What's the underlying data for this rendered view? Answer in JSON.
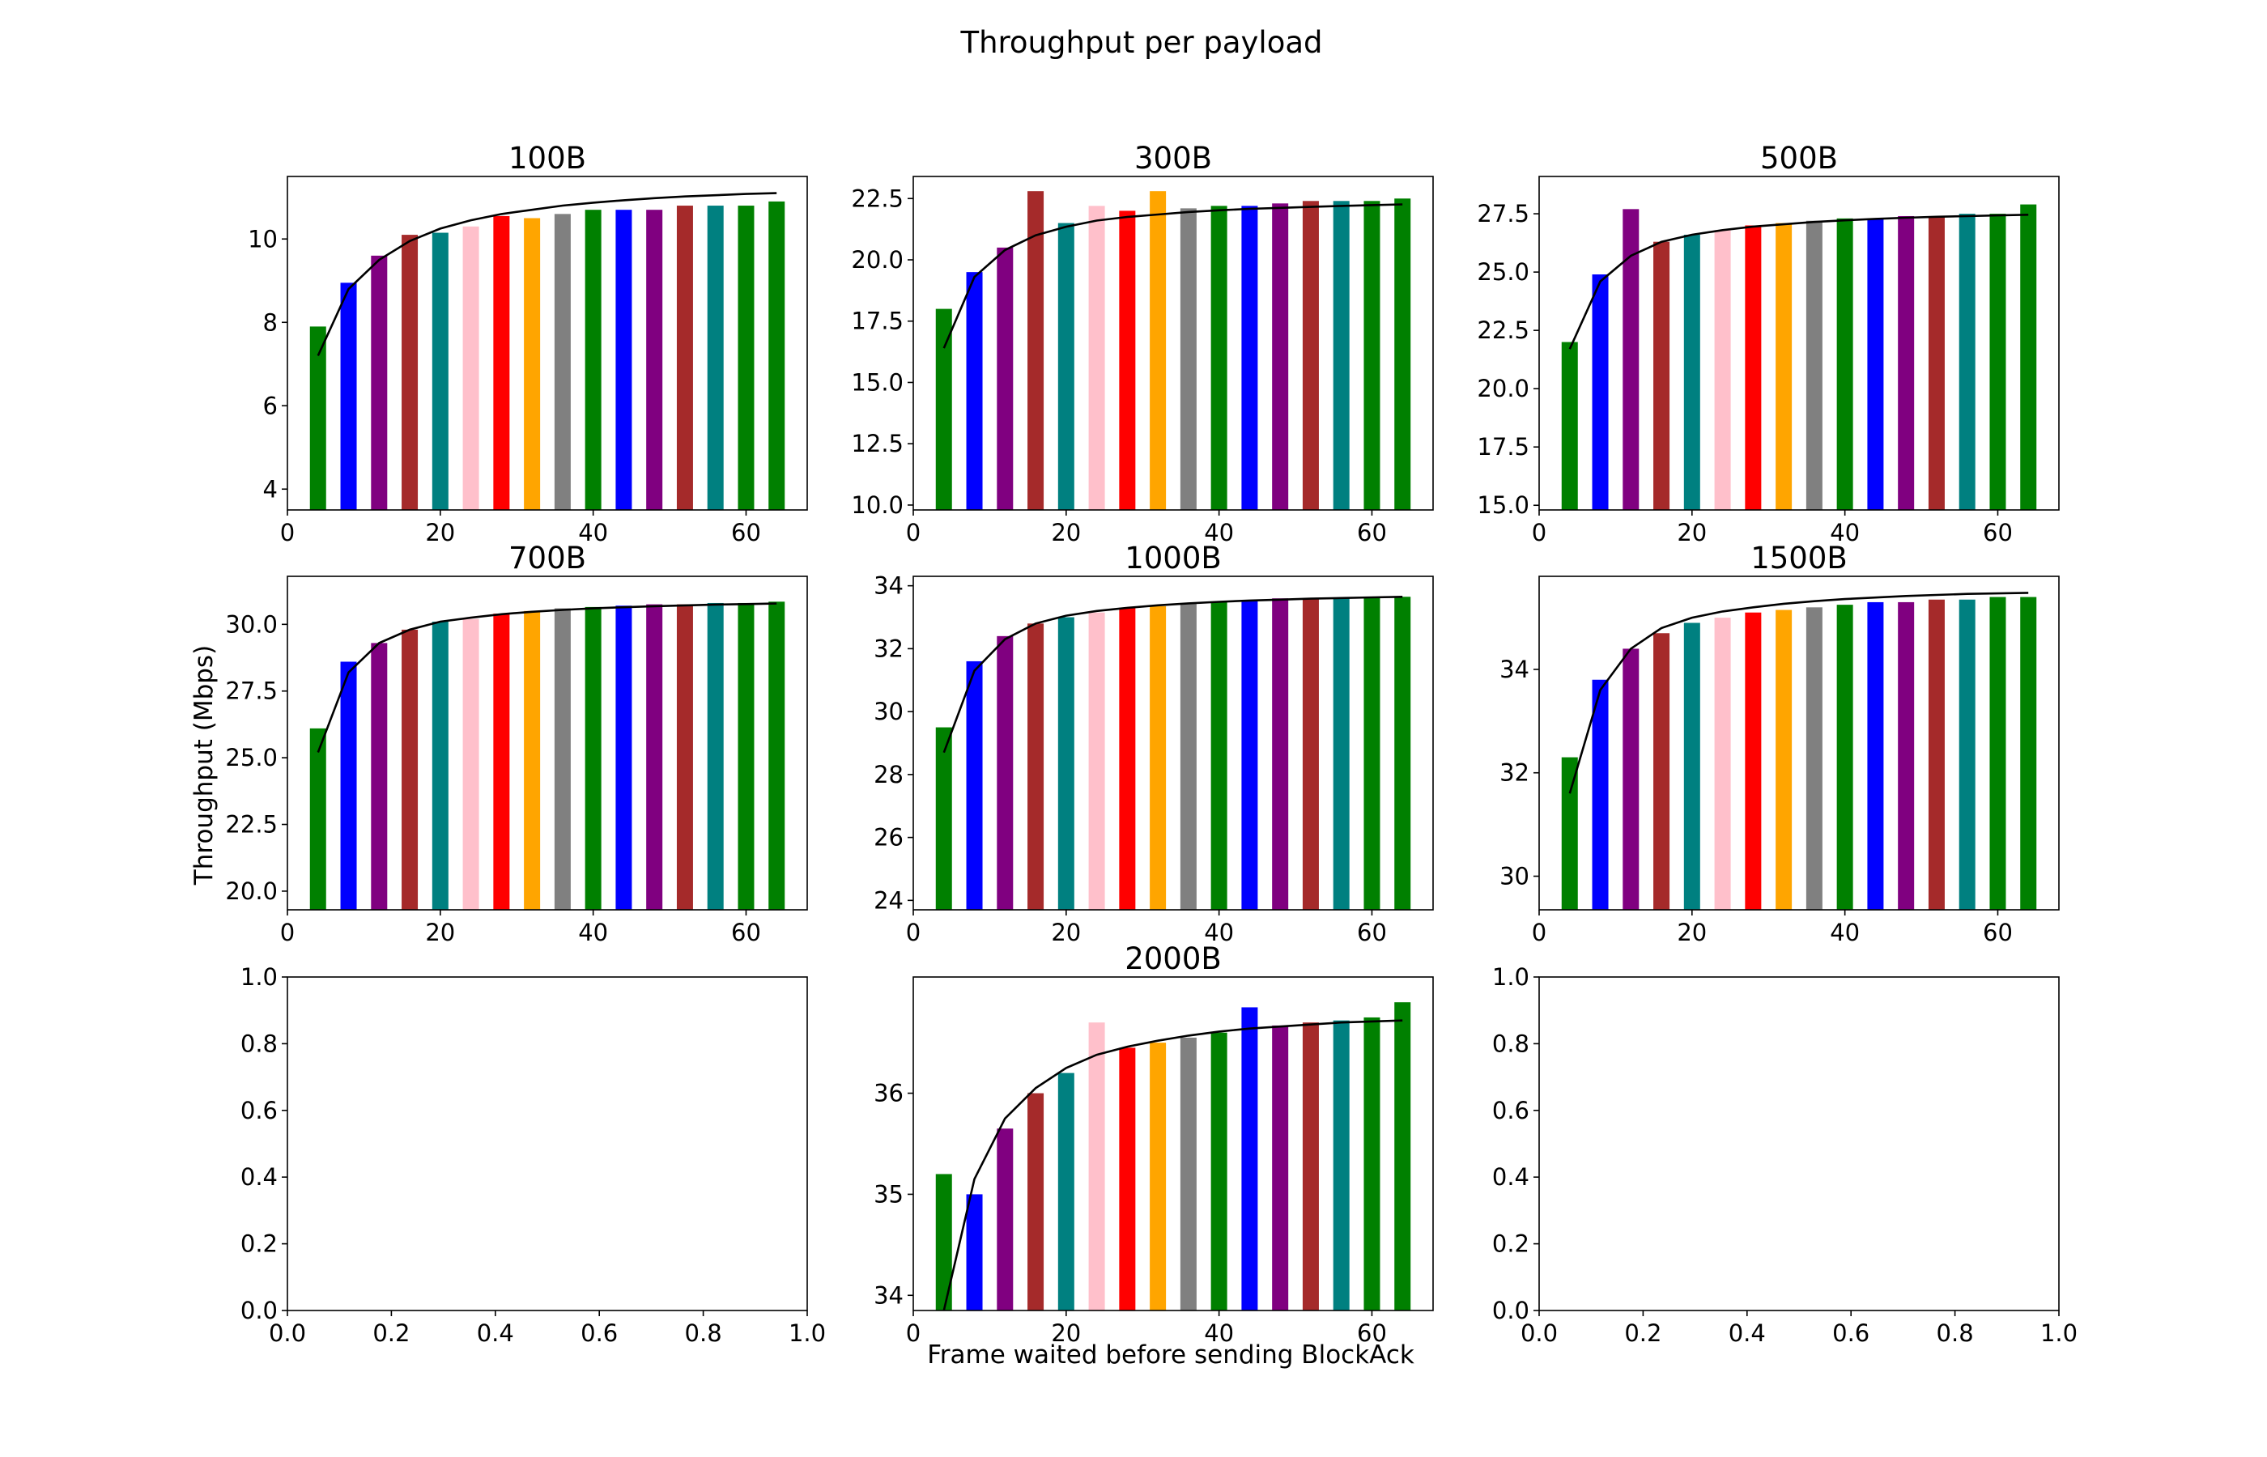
{
  "figure": {
    "title": "Throughput per payload",
    "ylabel": "Throughput (Mbps)",
    "xlabel": "Frame waited before sending BlockAck"
  },
  "palette": [
    "#008000",
    "#0000ff",
    "#800080",
    "#a52a2a",
    "#008080",
    "#ffc0cb",
    "#ff0000",
    "#ffa500",
    "#808080",
    "#008000",
    "#0000ff",
    "#800080",
    "#a52a2a",
    "#008080",
    "#008000"
  ],
  "chart_data": [
    {
      "type": "bar",
      "title": "100B",
      "x": [
        4,
        8,
        12,
        16,
        20,
        24,
        28,
        32,
        36,
        40,
        44,
        48,
        52,
        56,
        60,
        64
      ],
      "values": [
        7.9,
        8.95,
        9.6,
        10.1,
        10.15,
        10.3,
        10.55,
        10.5,
        10.6,
        10.7,
        10.7,
        10.7,
        10.8,
        10.8,
        10.8,
        10.9
      ],
      "fit": [
        7.2,
        8.8,
        9.5,
        9.95,
        10.25,
        10.45,
        10.6,
        10.7,
        10.8,
        10.87,
        10.93,
        10.98,
        11.02,
        11.05,
        11.08,
        11.1
      ],
      "xlim": [
        0,
        68
      ],
      "ylim": [
        3.5,
        11.5
      ],
      "xticks": [
        0,
        20,
        40,
        60
      ],
      "xtick_labels": [
        "0",
        "20",
        "40",
        "60"
      ],
      "yticks": [
        4,
        6,
        8,
        10
      ],
      "ytick_labels": [
        "4",
        "6",
        "8",
        "10"
      ]
    },
    {
      "type": "bar",
      "title": "300B",
      "x": [
        4,
        8,
        12,
        16,
        20,
        24,
        28,
        32,
        36,
        40,
        44,
        48,
        52,
        56,
        60,
        64
      ],
      "values": [
        18.0,
        19.5,
        20.5,
        22.8,
        21.5,
        22.2,
        22.0,
        22.8,
        22.1,
        22.2,
        22.2,
        22.3,
        22.4,
        22.4,
        22.4,
        22.5
      ],
      "fit": [
        16.4,
        19.3,
        20.4,
        21.0,
        21.35,
        21.6,
        21.75,
        21.85,
        21.95,
        22.02,
        22.08,
        22.12,
        22.16,
        22.2,
        22.23,
        22.26
      ],
      "xlim": [
        0,
        68
      ],
      "ylim": [
        9.8,
        23.4
      ],
      "xticks": [
        0,
        20,
        40,
        60
      ],
      "xtick_labels": [
        "0",
        "20",
        "40",
        "60"
      ],
      "yticks": [
        10,
        12.5,
        15,
        17.5,
        20,
        22.5
      ],
      "ytick_labels": [
        "10.0",
        "12.5",
        "15.0",
        "17.5",
        "20.0",
        "22.5"
      ]
    },
    {
      "type": "bar",
      "title": "500B",
      "x": [
        4,
        8,
        12,
        16,
        20,
        24,
        28,
        32,
        36,
        40,
        44,
        48,
        52,
        56,
        60,
        64
      ],
      "values": [
        22.0,
        24.9,
        27.7,
        26.3,
        26.6,
        26.8,
        27.0,
        27.1,
        27.2,
        27.3,
        27.3,
        27.4,
        27.4,
        27.5,
        27.5,
        27.9
      ],
      "fit": [
        21.7,
        24.6,
        25.7,
        26.3,
        26.6,
        26.8,
        26.95,
        27.05,
        27.15,
        27.22,
        27.28,
        27.33,
        27.37,
        27.4,
        27.43,
        27.46
      ],
      "xlim": [
        0,
        68
      ],
      "ylim": [
        14.8,
        29.1
      ],
      "xticks": [
        0,
        20,
        40,
        60
      ],
      "xtick_labels": [
        "0",
        "20",
        "40",
        "60"
      ],
      "yticks": [
        15,
        17.5,
        20,
        22.5,
        25,
        27.5
      ],
      "ytick_labels": [
        "15.0",
        "17.5",
        "20.0",
        "22.5",
        "25.0",
        "27.5"
      ]
    },
    {
      "type": "bar",
      "title": "700B",
      "x": [
        4,
        8,
        12,
        16,
        20,
        24,
        28,
        32,
        36,
        40,
        44,
        48,
        52,
        56,
        60,
        64
      ],
      "values": [
        26.1,
        28.6,
        29.3,
        29.8,
        30.1,
        30.2,
        30.4,
        30.5,
        30.6,
        30.65,
        30.7,
        30.75,
        30.75,
        30.8,
        30.8,
        30.85
      ],
      "fit": [
        25.2,
        28.2,
        29.3,
        29.8,
        30.1,
        30.25,
        30.38,
        30.47,
        30.54,
        30.6,
        30.64,
        30.68,
        30.71,
        30.74,
        30.76,
        30.78
      ],
      "xlim": [
        0,
        68
      ],
      "ylim": [
        19.3,
        31.8
      ],
      "xticks": [
        0,
        20,
        40,
        60
      ],
      "xtick_labels": [
        "0",
        "20",
        "40",
        "60"
      ],
      "yticks": [
        20,
        22.5,
        25,
        27.5,
        30
      ],
      "ytick_labels": [
        "20.0",
        "22.5",
        "25.0",
        "27.5",
        "30.0"
      ]
    },
    {
      "type": "bar",
      "title": "1000B",
      "x": [
        4,
        8,
        12,
        16,
        20,
        24,
        28,
        32,
        36,
        40,
        44,
        48,
        52,
        56,
        60,
        64
      ],
      "values": [
        29.5,
        31.6,
        32.4,
        32.8,
        33.0,
        33.15,
        33.3,
        33.35,
        33.45,
        33.5,
        33.55,
        33.6,
        33.6,
        33.6,
        33.65,
        33.65
      ],
      "fit": [
        28.7,
        31.3,
        32.3,
        32.8,
        33.05,
        33.2,
        33.3,
        33.38,
        33.44,
        33.49,
        33.53,
        33.56,
        33.59,
        33.61,
        33.63,
        33.65
      ],
      "xlim": [
        0,
        68
      ],
      "ylim": [
        23.7,
        34.3
      ],
      "xticks": [
        0,
        20,
        40,
        60
      ],
      "xtick_labels": [
        "0",
        "20",
        "40",
        "60"
      ],
      "yticks": [
        24,
        26,
        28,
        30,
        32,
        34
      ],
      "ytick_labels": [
        "24",
        "26",
        "28",
        "30",
        "32",
        "34"
      ]
    },
    {
      "type": "bar",
      "title": "1500B",
      "x": [
        4,
        8,
        12,
        16,
        20,
        24,
        28,
        32,
        36,
        40,
        44,
        48,
        52,
        56,
        60,
        64
      ],
      "values": [
        32.3,
        33.8,
        34.4,
        34.7,
        34.9,
        35.0,
        35.1,
        35.15,
        35.2,
        35.25,
        35.3,
        35.3,
        35.35,
        35.35,
        35.4,
        35.4
      ],
      "fit": [
        31.6,
        33.6,
        34.4,
        34.8,
        35.0,
        35.12,
        35.2,
        35.27,
        35.32,
        35.36,
        35.39,
        35.42,
        35.44,
        35.46,
        35.47,
        35.48
      ],
      "xlim": [
        0,
        68
      ],
      "ylim": [
        29.35,
        35.8
      ],
      "xticks": [
        0,
        20,
        40,
        60
      ],
      "xtick_labels": [
        "0",
        "20",
        "40",
        "60"
      ],
      "yticks": [
        30,
        32,
        34
      ],
      "ytick_labels": [
        "30",
        "32",
        "34"
      ]
    },
    {
      "type": "empty",
      "xlim": [
        0,
        1
      ],
      "ylim": [
        0,
        1
      ],
      "xticks": [
        0,
        0.2,
        0.4,
        0.6,
        0.8,
        1.0
      ],
      "xtick_labels": [
        "0.0",
        "0.2",
        "0.4",
        "0.6",
        "0.8",
        "1.0"
      ],
      "yticks": [
        0,
        0.2,
        0.4,
        0.6,
        0.8,
        1.0
      ],
      "ytick_labels": [
        "0.0",
        "0.2",
        "0.4",
        "0.6",
        "0.8",
        "1.0"
      ]
    },
    {
      "type": "bar",
      "title": "2000B",
      "x": [
        4,
        8,
        12,
        16,
        20,
        24,
        28,
        32,
        36,
        40,
        44,
        48,
        52,
        56,
        60,
        64
      ],
      "values": [
        34.8,
        34.6,
        35.25,
        35.6,
        35.8,
        36.3,
        36.05,
        36.1,
        36.15,
        36.2,
        36.45,
        36.27,
        36.3,
        36.32,
        36.35,
        36.5
      ],
      "fit": [
        33.45,
        34.75,
        35.35,
        35.65,
        35.85,
        35.98,
        36.06,
        36.12,
        36.17,
        36.21,
        36.24,
        36.26,
        36.28,
        36.3,
        36.31,
        36.32
      ],
      "xlim": [
        0,
        68
      ],
      "ylim": [
        33.45,
        36.75
      ],
      "xticks": [
        0,
        20,
        40,
        60
      ],
      "xtick_labels": [
        "0",
        "20",
        "40",
        "60"
      ],
      "yticks": [
        33.6,
        34.6,
        35.6
      ],
      "ytick_labels": [
        "34",
        "35",
        "36"
      ]
    },
    {
      "type": "empty",
      "xlim": [
        0,
        1
      ],
      "ylim": [
        0,
        1
      ],
      "xticks": [
        0,
        0.2,
        0.4,
        0.6,
        0.8,
        1.0
      ],
      "xtick_labels": [
        "0.0",
        "0.2",
        "0.4",
        "0.6",
        "0.8",
        "1.0"
      ],
      "yticks": [
        0,
        0.2,
        0.4,
        0.6,
        0.8,
        1.0
      ],
      "ytick_labels": [
        "0.0",
        "0.2",
        "0.4",
        "0.6",
        "0.8",
        "1.0"
      ]
    }
  ]
}
